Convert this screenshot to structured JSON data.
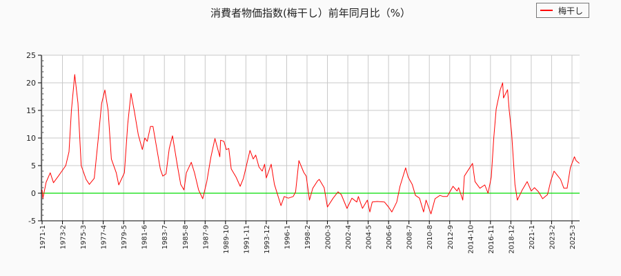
{
  "chart_data": {
    "type": "line",
    "title": "消費者物価指数(梅干し）前年同月比（%）",
    "xlabel": "",
    "ylabel": "",
    "ylim": [
      -5,
      25
    ],
    "yticks": [
      -5,
      0,
      5,
      10,
      15,
      20,
      25
    ],
    "xlim": [
      "1971-01",
      "2025-12"
    ],
    "xticks": [
      "1971-1",
      "1973-2",
      "1975-3",
      "1977-4",
      "1979-5",
      "1981-6",
      "1983-7",
      "1985-8",
      "1987-9",
      "1989-10",
      "1991-11",
      "1993-12",
      "1996-1",
      "1998-2",
      "2000-3",
      "2002-4",
      "2004-5",
      "2006-6",
      "2008-7",
      "2010-8",
      "2012-9",
      "2014-10",
      "2016-11",
      "2018-12",
      "2021-1",
      "2023-2",
      "2025-3"
    ],
    "grid": true,
    "legend_position": "top-right",
    "reference_line": {
      "y": 0,
      "color": "#00dd00"
    },
    "series": [
      {
        "name": "梅干し",
        "color": "#ff0000",
        "points": [
          [
            "1971-01",
            0.6
          ],
          [
            "1971-02",
            -0.9
          ],
          [
            "1971-06",
            2.0
          ],
          [
            "1971-11",
            3.7
          ],
          [
            "1972-03",
            1.9
          ],
          [
            "1972-09",
            3.1
          ],
          [
            "1973-06",
            5.0
          ],
          [
            "1973-10",
            7.5
          ],
          [
            "1974-01",
            15.0
          ],
          [
            "1974-05",
            21.5
          ],
          [
            "1974-09",
            16.3
          ],
          [
            "1975-01",
            5.0
          ],
          [
            "1975-07",
            2.5
          ],
          [
            "1975-11",
            1.6
          ],
          [
            "1976-05",
            2.7
          ],
          [
            "1976-10",
            10.0
          ],
          [
            "1977-02",
            16.2
          ],
          [
            "1977-06",
            18.7
          ],
          [
            "1977-10",
            15.0
          ],
          [
            "1978-02",
            6.2
          ],
          [
            "1978-08",
            3.7
          ],
          [
            "1978-11",
            1.5
          ],
          [
            "1979-06",
            3.7
          ],
          [
            "1979-10",
            12.5
          ],
          [
            "1980-02",
            18.1
          ],
          [
            "1980-06",
            15.0
          ],
          [
            "1980-11",
            10.6
          ],
          [
            "1981-04",
            7.9
          ],
          [
            "1981-07",
            10.0
          ],
          [
            "1981-10",
            9.4
          ],
          [
            "1982-02",
            12.1
          ],
          [
            "1982-05",
            12.1
          ],
          [
            "1982-09",
            8.7
          ],
          [
            "1983-02",
            4.4
          ],
          [
            "1983-05",
            3.1
          ],
          [
            "1983-09",
            3.5
          ],
          [
            "1984-01",
            8.1
          ],
          [
            "1984-05",
            10.4
          ],
          [
            "1984-11",
            5.0
          ],
          [
            "1985-03",
            1.6
          ],
          [
            "1985-07",
            0.6
          ],
          [
            "1985-10",
            3.7
          ],
          [
            "1986-04",
            5.6
          ],
          [
            "1986-08",
            3.7
          ],
          [
            "1987-01",
            0.6
          ],
          [
            "1987-06",
            -1.0
          ],
          [
            "1987-11",
            2.1
          ],
          [
            "1988-04",
            6.5
          ],
          [
            "1988-09",
            9.9
          ],
          [
            "1989-03",
            6.6
          ],
          [
            "1989-04",
            9.6
          ],
          [
            "1989-08",
            9.4
          ],
          [
            "1989-11",
            7.9
          ],
          [
            "1990-02",
            8.1
          ],
          [
            "1990-05",
            4.4
          ],
          [
            "1990-11",
            2.9
          ],
          [
            "1991-04",
            1.25
          ],
          [
            "1991-08",
            2.7
          ],
          [
            "1992-04",
            7.75
          ],
          [
            "1992-08",
            6.2
          ],
          [
            "1992-11",
            6.9
          ],
          [
            "1993-03",
            4.75
          ],
          [
            "1993-07",
            4.0
          ],
          [
            "1993-10",
            5.25
          ],
          [
            "1993-12",
            2.75
          ],
          [
            "1994-06",
            5.25
          ],
          [
            "1994-10",
            1.6
          ],
          [
            "1995-06",
            -2.25
          ],
          [
            "1995-10",
            -0.6
          ],
          [
            "1996-03",
            -0.9
          ],
          [
            "1996-09",
            -0.6
          ],
          [
            "1996-12",
            0.25
          ],
          [
            "1997-04",
            5.9
          ],
          [
            "1997-10",
            3.75
          ],
          [
            "1998-01",
            3.1
          ],
          [
            "1998-05",
            -1.25
          ],
          [
            "1998-09",
            0.9
          ],
          [
            "1999-03",
            2.25
          ],
          [
            "1999-05",
            2.5
          ],
          [
            "1999-11",
            1.0
          ],
          [
            "2000-03",
            -2.5
          ],
          [
            "2000-10",
            -0.9
          ],
          [
            "2001-04",
            0.25
          ],
          [
            "2001-08",
            -0.25
          ],
          [
            "2002-03",
            -2.75
          ],
          [
            "2002-09",
            -0.9
          ],
          [
            "2003-03",
            -1.6
          ],
          [
            "2003-05",
            -0.6
          ],
          [
            "2003-10",
            -2.75
          ],
          [
            "2004-04",
            -1.25
          ],
          [
            "2004-07",
            -3.4
          ],
          [
            "2004-10",
            -1.6
          ],
          [
            "2005-04",
            -1.5
          ],
          [
            "2006-01",
            -1.6
          ],
          [
            "2006-06",
            -2.5
          ],
          [
            "2006-10",
            -3.4
          ],
          [
            "2007-04",
            -1.6
          ],
          [
            "2007-08",
            1.25
          ],
          [
            "2008-03",
            4.6
          ],
          [
            "2008-06",
            2.9
          ],
          [
            "2008-11",
            1.6
          ],
          [
            "2009-03",
            -0.4
          ],
          [
            "2009-08",
            -0.9
          ],
          [
            "2010-01",
            -3.4
          ],
          [
            "2010-04",
            -1.25
          ],
          [
            "2010-10",
            -3.75
          ],
          [
            "2011-03",
            -1.0
          ],
          [
            "2011-09",
            -0.4
          ],
          [
            "2012-01",
            -0.6
          ],
          [
            "2012-06",
            -0.6
          ],
          [
            "2013-01",
            1.25
          ],
          [
            "2013-06",
            0.4
          ],
          [
            "2013-08",
            1.0
          ],
          [
            "2014-01",
            -1.25
          ],
          [
            "2014-03",
            3.1
          ],
          [
            "2015-01",
            5.4
          ],
          [
            "2015-04",
            2.1
          ],
          [
            "2015-10",
            0.9
          ],
          [
            "2016-04",
            1.5
          ],
          [
            "2016-08",
            0.0
          ],
          [
            "2016-12",
            2.9
          ],
          [
            "2017-03",
            10.0
          ],
          [
            "2017-06",
            15.25
          ],
          [
            "2017-11",
            18.75
          ],
          [
            "2018-02",
            20.0
          ],
          [
            "2018-03",
            17.25
          ],
          [
            "2018-08",
            18.75
          ],
          [
            "2018-10",
            15.0
          ],
          [
            "2019-01",
            10.9
          ],
          [
            "2019-05",
            1.6
          ],
          [
            "2019-08",
            -1.25
          ],
          [
            "2020-02",
            0.6
          ],
          [
            "2020-08",
            2.1
          ],
          [
            "2021-01",
            0.4
          ],
          [
            "2021-05",
            1.0
          ],
          [
            "2021-10",
            0.25
          ],
          [
            "2022-03",
            -1.0
          ],
          [
            "2022-09",
            -0.25
          ],
          [
            "2023-01",
            2.25
          ],
          [
            "2023-05",
            4.0
          ],
          [
            "2024-01",
            2.5
          ],
          [
            "2024-05",
            0.9
          ],
          [
            "2024-09",
            0.9
          ],
          [
            "2025-01",
            4.6
          ],
          [
            "2025-06",
            6.6
          ],
          [
            "2025-08",
            5.9
          ],
          [
            "2025-12",
            5.4
          ]
        ]
      }
    ]
  }
}
